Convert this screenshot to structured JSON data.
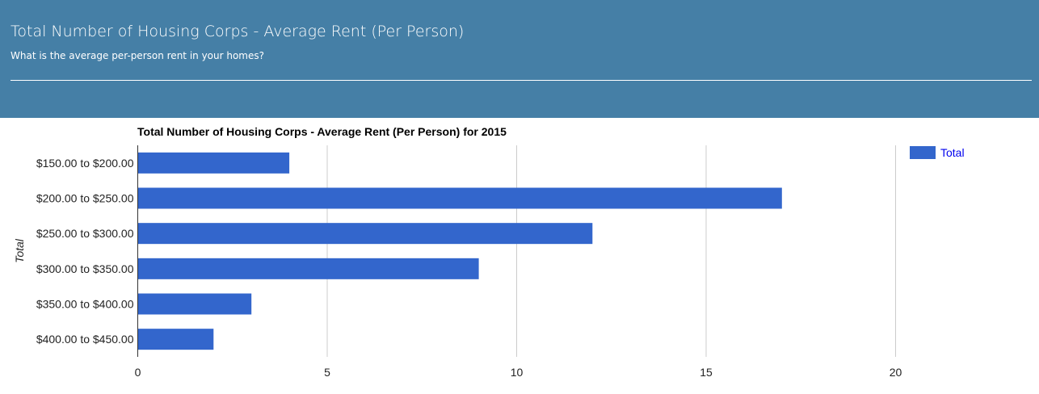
{
  "header": {
    "title": "Total Number of Housing Corps - Average Rent (Per Person)",
    "subtitle": "What is the average per-person rent in your homes?"
  },
  "chart_data": {
    "type": "bar",
    "orientation": "horizontal",
    "title": "Total Number of Housing Corps - Average Rent (Per Person) for 2015",
    "xlabel": "",
    "ylabel": "Total",
    "categories": [
      "$150.00 to $200.00",
      "$200.00 to $250.00",
      "$250.00 to $300.00",
      "$300.00 to $350.00",
      "$350.00 to $400.00",
      "$400.00 to $450.00"
    ],
    "series": [
      {
        "name": "Total",
        "values": [
          4,
          17,
          12,
          9,
          3,
          2
        ],
        "color": "#3366cc"
      }
    ],
    "xlim": [
      0,
      20
    ],
    "xticks": [
      0,
      5,
      10,
      15,
      20
    ],
    "grid": true,
    "legend_position": "top-right"
  }
}
